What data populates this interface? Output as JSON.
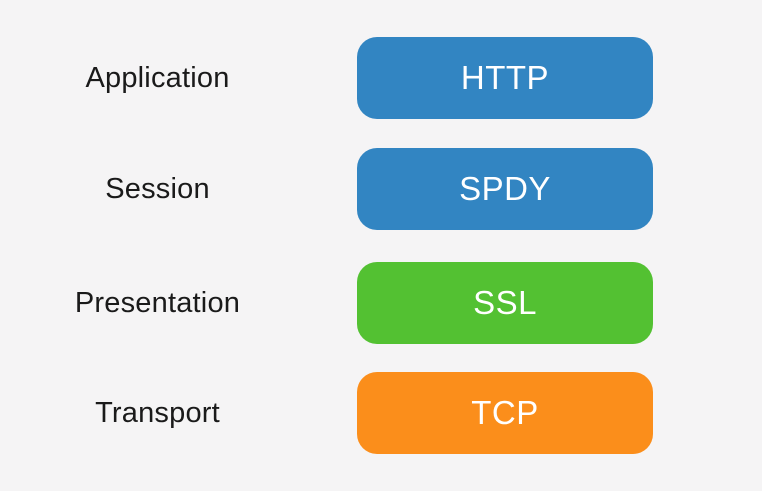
{
  "diagram": {
    "background_color": "#f5f4f5",
    "label_color": "#1a1a1a",
    "box_text_color": "#ffffff",
    "colors": {
      "blue": "#3285c2",
      "green": "#53c132",
      "orange": "#fb8e1b"
    },
    "rows": [
      {
        "label": "Application",
        "protocol": "HTTP",
        "color": "#3285c2"
      },
      {
        "label": "Session",
        "protocol": "SPDY",
        "color": "#3285c2"
      },
      {
        "label": "Presentation",
        "protocol": "SSL",
        "color": "#53c132"
      },
      {
        "label": "Transport",
        "protocol": "TCP",
        "color": "#fb8e1b"
      }
    ]
  }
}
